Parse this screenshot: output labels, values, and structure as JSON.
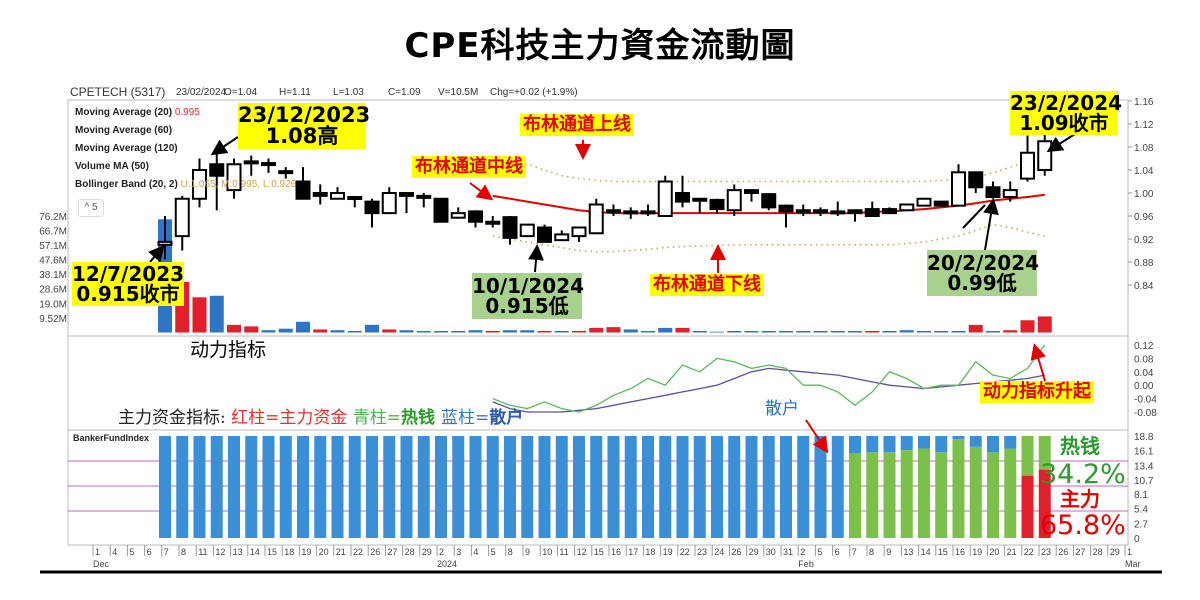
{
  "title": "CPE科技主力資金流動圖",
  "header": {
    "symbol": "CPETECH (5317)",
    "date": "23/02/2024",
    "open": "O=1.04",
    "high": "H=1.11",
    "low": "L=1.03",
    "close": "C=1.09",
    "volume": "V=10.5M",
    "change": "Chg=+0.02 (+1.9%)"
  },
  "legend": {
    "ma20": "Moving Average (20)",
    "ma20_value": "0.995",
    "ma60": "Moving Average (60)",
    "ma120": "Moving Average (120)",
    "volma": "Volume MA (50)",
    "bb": "Bollinger Band (20, 2)",
    "bb_values": "U:1.065,  M:0.995,  L:0.926",
    "collapse": "^ 5"
  },
  "annotations": {
    "peak_date": "23/12/2023",
    "peak_text": "1.08高",
    "start_date": "12/7/2023",
    "start_text": "0.915收市",
    "low_date": "10/1/2024",
    "low_text": "0.915低",
    "last_date": "23/2/2024",
    "last_text": "1.09收市",
    "low2_date": "20/2/2024",
    "low2_text": "0.99低",
    "bb_upper": "布林通道上线",
    "bb_mid": "布林通道中线",
    "bb_lower": "布林通道下线",
    "momentum_label": "动力指标",
    "momentum_rise": "动力指标升起",
    "fund_legend": {
      "p1": "主力资金指标: ",
      "p2": "红柱=主力资金 ",
      "p3": "青柱=",
      "p4": "热钱 ",
      "p5": "蓝柱=",
      "p6": "散户"
    },
    "retail": "散户",
    "hot_label": "热钱",
    "hot_pct": "34.2%",
    "main_label": "主力",
    "main_pct": "65.8%",
    "banker_title": "BankerFundIndex"
  },
  "colors": {
    "up_volume": "#2e75c5",
    "down_volume": "#e0202a",
    "bb_mid": "#e00000",
    "bb_band": "#d4a04a",
    "momentum_fast": "#5cb85c",
    "momentum_slow": "#5a4fa0",
    "retail": "#3a8fd6",
    "hot": "#7cc04c",
    "main": "#e0202a",
    "grid": "#cc66cc"
  },
  "chart_data": [
    {
      "type": "candlestick",
      "panel": "price",
      "ylim": [
        0.8,
        1.16
      ],
      "yticks": [
        "1.16",
        "1.12",
        "1.08",
        "1.04",
        "1.00",
        "0.96",
        "0.92",
        "0.88",
        "0.84"
      ],
      "candles": [
        [
          "Dec 7",
          0.91,
          0.96,
          0.885,
          0.915
        ],
        [
          "Dec 8",
          0.925,
          0.995,
          0.9,
          0.99
        ],
        [
          "Dec 11",
          0.99,
          1.06,
          0.975,
          1.04
        ],
        [
          "Dec 12",
          1.05,
          1.08,
          0.97,
          1.03
        ],
        [
          "Dec 13",
          1.005,
          1.06,
          0.99,
          1.05
        ],
        [
          "Dec 14",
          1.055,
          1.065,
          1.03,
          1.055
        ],
        [
          "Dec 15",
          1.052,
          1.06,
          1.035,
          1.052
        ],
        [
          "Dec 18",
          1.038,
          1.045,
          1.025,
          1.038
        ],
        [
          "Dec 19",
          1.02,
          1.045,
          0.99,
          0.99
        ],
        [
          "Dec 20",
          1.0,
          1.015,
          0.98,
          0.995
        ],
        [
          "Dec 21",
          0.99,
          1.01,
          0.99,
          1.0
        ],
        [
          "Dec 22",
          0.993,
          0.995,
          0.975,
          0.993
        ],
        [
          "Dec 26",
          0.985,
          0.99,
          0.94,
          0.965
        ],
        [
          "Dec 27",
          0.965,
          1.01,
          0.965,
          1.0
        ],
        [
          "Dec 28",
          1.0,
          1.0,
          0.965,
          0.995
        ],
        [
          "Dec 29",
          0.995,
          1.0,
          0.975,
          0.995
        ],
        [
          "Jan 2",
          0.99,
          0.99,
          0.95,
          0.95
        ],
        [
          "Jan 3",
          0.957,
          0.975,
          0.957,
          0.965
        ],
        [
          "Jan 4",
          0.968,
          0.97,
          0.94,
          0.95
        ],
        [
          "Jan 5",
          0.95,
          0.96,
          0.94,
          0.95
        ],
        [
          "Jan 8",
          0.958,
          0.96,
          0.91,
          0.922
        ],
        [
          "Jan 9",
          0.925,
          0.945,
          0.925,
          0.945
        ],
        [
          "Jan 10",
          0.94,
          0.945,
          0.915,
          0.915
        ],
        [
          "Jan 11",
          0.918,
          0.935,
          0.918,
          0.928
        ],
        [
          "Jan 12",
          0.925,
          0.94,
          0.915,
          0.94
        ],
        [
          "Jan 15",
          0.93,
          0.99,
          0.93,
          0.98
        ],
        [
          "Jan 16",
          0.97,
          0.98,
          0.96,
          0.97
        ],
        [
          "Jan 17",
          0.968,
          0.975,
          0.955,
          0.965
        ],
        [
          "Jan 18",
          0.968,
          0.98,
          0.96,
          0.968
        ],
        [
          "Jan 19",
          0.96,
          1.03,
          0.96,
          1.02
        ],
        [
          "Jan 22",
          1.0,
          1.03,
          0.975,
          0.985
        ],
        [
          "Jan 23",
          0.99,
          0.99,
          0.965,
          0.99
        ],
        [
          "Jan 24",
          0.988,
          0.99,
          0.965,
          0.972
        ],
        [
          "Jan 26",
          0.97,
          1.015,
          0.96,
          1.005
        ],
        [
          "Jan 29",
          1.005,
          1.005,
          0.985,
          1.0
        ],
        [
          "Jan 30",
          0.998,
          1.0,
          0.97,
          0.975
        ],
        [
          "Jan 31",
          0.978,
          0.98,
          0.94,
          0.968
        ],
        [
          "Feb 2",
          0.97,
          0.98,
          0.96,
          0.97
        ],
        [
          "Feb 5",
          0.97,
          0.975,
          0.96,
          0.97
        ],
        [
          "Feb 6",
          0.968,
          0.985,
          0.96,
          0.968
        ],
        [
          "Feb 7",
          0.97,
          0.97,
          0.95,
          0.965
        ],
        [
          "Feb 8",
          0.972,
          0.985,
          0.96,
          0.96
        ],
        [
          "Feb 9",
          0.972,
          0.975,
          0.965,
          0.965
        ],
        [
          "Feb 13",
          0.97,
          0.98,
          0.97,
          0.98
        ],
        [
          "Feb 14",
          0.978,
          0.99,
          0.978,
          0.99
        ],
        [
          "Feb 15",
          0.985,
          0.985,
          0.978,
          0.978
        ],
        [
          "Feb 16",
          0.978,
          1.05,
          0.978,
          1.036
        ],
        [
          "Feb 19",
          1.036,
          1.036,
          1.0,
          1.01
        ],
        [
          "Feb 20",
          1.01,
          1.02,
          0.99,
          0.993
        ],
        [
          "Feb 21",
          0.993,
          1.02,
          0.985,
          1.005
        ],
        [
          "Feb 22",
          1.025,
          1.1,
          1.02,
          1.07
        ],
        [
          "Feb 23",
          1.04,
          1.11,
          1.03,
          1.09
        ]
      ],
      "bollinger_start": "Jan 5",
      "bollinger_upper": [
        1.063,
        1.058,
        1.05,
        1.04,
        1.03,
        1.025,
        1.022,
        1.02,
        1.02,
        1.02,
        1.02,
        1.02,
        1.02,
        1.02,
        1.02,
        1.02,
        1.02,
        1.02,
        1.02,
        1.02,
        1.02,
        1.02,
        1.02,
        1.02,
        1.02,
        1.02,
        1.022,
        1.025,
        1.028,
        1.035,
        1.045,
        1.055,
        1.06
      ],
      "bollinger_mid": [
        0.995,
        0.99,
        0.985,
        0.98,
        0.975,
        0.97,
        0.967,
        0.965,
        0.965,
        0.965,
        0.965,
        0.965,
        0.965,
        0.965,
        0.965,
        0.965,
        0.965,
        0.965,
        0.965,
        0.965,
        0.965,
        0.965,
        0.967,
        0.968,
        0.97,
        0.972,
        0.975,
        0.978,
        0.982,
        0.987,
        0.99,
        0.993,
        0.997
      ],
      "bollinger_lower": [
        0.925,
        0.92,
        0.915,
        0.91,
        0.905,
        0.9,
        0.898,
        0.898,
        0.9,
        0.902,
        0.905,
        0.907,
        0.908,
        0.909,
        0.91,
        0.91,
        0.91,
        0.91,
        0.91,
        0.91,
        0.91,
        0.91,
        0.91,
        0.91,
        0.912,
        0.915,
        0.92,
        0.925,
        0.935,
        0.945,
        0.94,
        0.932,
        0.925
      ]
    },
    {
      "type": "bar",
      "panel": "volume",
      "yticks": [
        "76.2M",
        "66.7M",
        "57.1M",
        "47.6M",
        "38.1M",
        "28.6M",
        "19.0M",
        "9.52M"
      ],
      "values_m": [
        74,
        33,
        23,
        24,
        5,
        4,
        1.5,
        2.5,
        7,
        2,
        1.5,
        1,
        5,
        2,
        1.5,
        1,
        1,
        1,
        1.5,
        1,
        1.5,
        1.5,
        1,
        1,
        1,
        3,
        3.5,
        2,
        1,
        3,
        3,
        1,
        0.5,
        1,
        1,
        1,
        1,
        1,
        1,
        1,
        1,
        1,
        1,
        1.5,
        1,
        1,
        1,
        5,
        1,
        1.5,
        8,
        10.5
      ],
      "direction": [
        "up",
        "down",
        "down",
        "up",
        "down",
        "down",
        "up",
        "up",
        "up",
        "down",
        "up",
        "up",
        "up",
        "down",
        "up",
        "up",
        "up",
        "up",
        "up",
        "down",
        "up",
        "up",
        "down",
        "up",
        "down",
        "down",
        "down",
        "up",
        "up",
        "up",
        "down",
        "up",
        "up",
        "up",
        "up",
        "up",
        "up",
        "up",
        "up",
        "up",
        "up",
        "down",
        "up",
        "up",
        "up",
        "up",
        "up",
        "down",
        "up",
        "down",
        "down",
        "down"
      ]
    },
    {
      "type": "line",
      "panel": "momentum",
      "ylim": [
        -0.1,
        0.14
      ],
      "yticks": [
        "0.12",
        "0.08",
        "0.04",
        "0.00",
        "-0.04",
        "-0.08"
      ],
      "start": "Jan 5",
      "series": [
        {
          "values": [
            -0.04,
            -0.06,
            -0.07,
            -0.05,
            -0.07,
            -0.08,
            -0.06,
            -0.03,
            -0.01,
            0.02,
            0.0,
            0.06,
            0.04,
            0.08,
            0.07,
            0.05,
            0.06,
            0.05,
            0.0,
            0.0,
            -0.02,
            -0.06,
            -0.02,
            0.04,
            0.02,
            -0.01,
            0.0,
            0.0,
            0.07,
            0.03,
            0.02,
            0.05,
            0.12
          ]
        },
        {
          "values": [
            -0.05,
            -0.07,
            -0.08,
            -0.08,
            -0.08,
            -0.075,
            -0.07,
            -0.06,
            -0.05,
            -0.04,
            -0.03,
            -0.02,
            -0.01,
            0.0,
            0.02,
            0.04,
            0.05,
            0.045,
            0.04,
            0.035,
            0.03,
            0.02,
            0.01,
            0.0,
            -0.005,
            -0.01,
            -0.005,
            0.0,
            0.005,
            0.01,
            0.015,
            0.02,
            0.03
          ]
        }
      ]
    },
    {
      "type": "stacked-bar",
      "panel": "BankerFundIndex",
      "ylim": [
        0,
        18.8
      ],
      "yticks": [
        "18.8",
        "16.1",
        "13.4",
        "10.7",
        "8.1",
        "5.4",
        "2.7",
        "0"
      ],
      "total": 18.8,
      "retail_values": [
        18.8,
        18.8,
        18.8,
        18.8,
        18.8,
        18.8,
        18.8,
        18.8,
        18.8,
        18.8,
        18.8,
        18.8,
        18.8,
        18.8,
        18.8,
        18.8,
        18.8,
        18.8,
        18.8,
        18.8,
        18.8,
        18.8,
        18.8,
        18.8,
        18.8,
        18.8,
        18.8,
        18.8,
        18.8,
        18.8,
        18.8,
        18.8,
        18.8,
        18.8,
        18.8,
        18.8,
        18.8,
        18.8,
        18.8,
        18.8,
        3.2,
        3.0,
        3.0,
        2.6,
        2.3,
        3.0,
        0.6,
        2.0,
        3.0,
        2.3,
        0,
        0
      ],
      "main_values": [
        0,
        0,
        0,
        0,
        0,
        0,
        0,
        0,
        0,
        0,
        0,
        0,
        0,
        0,
        0,
        0,
        0,
        0,
        0,
        0,
        0,
        0,
        0,
        0,
        0,
        0,
        0,
        0,
        0,
        0,
        0,
        0,
        0,
        0,
        0,
        0,
        0,
        0,
        0,
        0,
        0,
        0,
        0,
        0,
        0,
        0,
        0,
        0,
        0,
        0,
        11.5,
        12.6
      ]
    }
  ],
  "xaxis": {
    "ticks": [
      "1",
      "4",
      "5",
      "6",
      "7",
      "8",
      "11",
      "12",
      "13",
      "14",
      "15",
      "18",
      "19",
      "20",
      "21",
      "22",
      "26",
      "27",
      "28",
      "29",
      "2",
      "3",
      "4",
      "5",
      "8",
      "9",
      "10",
      "11",
      "12",
      "15",
      "16",
      "17",
      "18",
      "19",
      "22",
      "23",
      "24",
      "26",
      "29",
      "30",
      "31",
      "2",
      "5",
      "6",
      "7",
      "8",
      "9",
      "13",
      "14",
      "15",
      "16",
      "19",
      "20",
      "21",
      "22",
      "23",
      "26",
      "27",
      "28",
      "29",
      "1"
    ],
    "months": [
      {
        "label": "Dec",
        "tick": 0
      },
      {
        "label": "2024",
        "tick": 20
      },
      {
        "label": "Feb",
        "tick": 41
      },
      {
        "label": "Mar",
        "tick": 60
      }
    ]
  }
}
